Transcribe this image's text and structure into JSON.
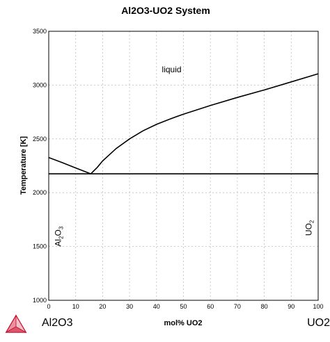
{
  "chart_data": {
    "type": "line",
    "title": "Al2O3-UO2 System",
    "xlabel": "mol% UO2",
    "ylabel": "Temperature [K]",
    "xlim": [
      0,
      100
    ],
    "ylim": [
      1000,
      3500
    ],
    "xticks": [
      0,
      10,
      20,
      30,
      40,
      50,
      60,
      70,
      80,
      90,
      100
    ],
    "yticks": [
      1000,
      1500,
      2000,
      2500,
      3000,
      3500
    ],
    "grid": true,
    "series": [
      {
        "x": [
          0,
          5,
          10,
          15.6
        ],
        "y": [
          2327,
          2280,
          2230,
          2175
        ]
      },
      {
        "x": [
          15.6,
          18,
          20,
          25,
          30,
          35,
          40,
          45,
          50,
          55,
          60,
          70,
          80,
          90,
          100
        ],
        "y": [
          2175,
          2235,
          2295,
          2410,
          2500,
          2575,
          2635,
          2685,
          2730,
          2770,
          2810,
          2885,
          2955,
          3030,
          3105
        ]
      },
      {
        "x": [
          0,
          100
        ],
        "y": [
          2175,
          2175
        ]
      }
    ],
    "annotations": [
      {
        "text": "liquid",
        "x": 42,
        "y": 3120
      },
      {
        "text_main": "Al",
        "sub1": "2",
        "mid": "O",
        "sub2": "3",
        "x": 4.5,
        "y": 1500
      },
      {
        "text_main": "UO",
        "sub1": "2",
        "x": 97.5,
        "y": 1600
      }
    ]
  },
  "corner_labels": {
    "left": "Al2O3",
    "right": "UO2"
  },
  "logo": {
    "name": "thermo-calc-logo-icon",
    "color": "#c8102e"
  }
}
